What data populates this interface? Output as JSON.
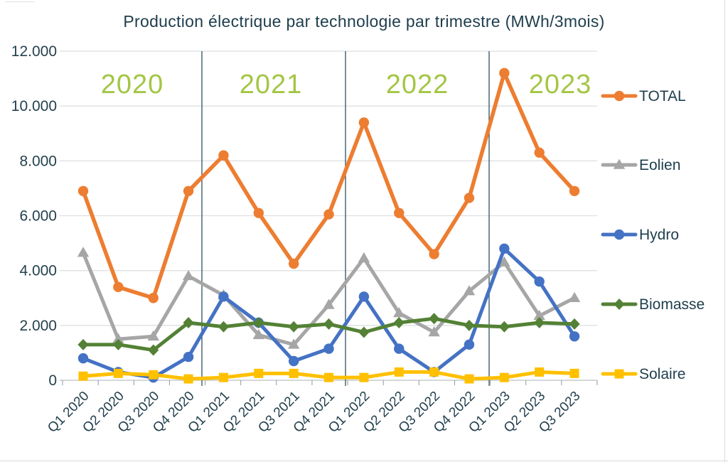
{
  "chart_data": {
    "type": "line",
    "title": "Production électrique par technologie par trimestre (MWh/3mois)",
    "categories": [
      "Q1 2020",
      "Q2 2020",
      "Q3 2020",
      "Q4 2020",
      "Q1 2021",
      "Q2 2021",
      "Q3 2021",
      "Q4 2021",
      "Q1 2022",
      "Q2 2022",
      "Q3 2022",
      "Q4 2022",
      "Q1 2023",
      "Q2 2023",
      "Q3 2023"
    ],
    "series": [
      {
        "name": "TOTAL",
        "color": "#ED7D31",
        "marker": "circle",
        "values": [
          6900,
          3400,
          3000,
          6900,
          8200,
          6100,
          4250,
          6050,
          9400,
          6100,
          4600,
          6650,
          11200,
          8300,
          6900
        ]
      },
      {
        "name": "Eolien",
        "color": "#A6A6A6",
        "marker": "triangle",
        "values": [
          4650,
          1500,
          1600,
          3800,
          3100,
          1650,
          1300,
          2750,
          4450,
          2450,
          1750,
          3250,
          4300,
          2350,
          3000
        ]
      },
      {
        "name": "Hydro",
        "color": "#4472C4",
        "marker": "circle",
        "values": [
          800,
          300,
          100,
          850,
          3050,
          2100,
          700,
          1150,
          3050,
          1150,
          300,
          1300,
          4800,
          3600,
          1600
        ]
      },
      {
        "name": "Biomasse",
        "color": "#538135",
        "marker": "diamond",
        "values": [
          1300,
          1300,
          1100,
          2100,
          1950,
          2100,
          1950,
          2050,
          1750,
          2100,
          2250,
          2000,
          1950,
          2100,
          2050
        ]
      },
      {
        "name": "Solaire",
        "color": "#FFC000",
        "marker": "square",
        "values": [
          150,
          250,
          200,
          50,
          100,
          250,
          250,
          100,
          100,
          300,
          300,
          50,
          100,
          300,
          250
        ]
      }
    ],
    "y_axis": {
      "min": 0,
      "max": 12000,
      "step": 2000,
      "tick_labels": [
        "12.000",
        "10.000",
        "8.000",
        "6.000",
        "4.000",
        "2.000",
        "0"
      ]
    },
    "x_axis": {
      "label_rotation_deg": -45
    },
    "years": [
      "2020",
      "2021",
      "2022",
      "2023"
    ],
    "grid": true,
    "legend_position": "right",
    "style": {
      "grid_color": "#dee0e1",
      "axis_line_color": "#c6cbce",
      "tick_color": "#8d9aa0",
      "separator_color": "#2e5260",
      "year_label_color": "#a3c644",
      "text_color": "#24414e",
      "title_color": "#1e3d4d"
    }
  }
}
